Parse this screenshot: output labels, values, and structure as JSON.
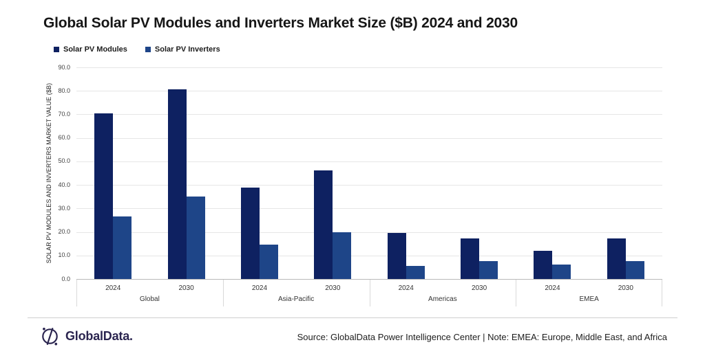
{
  "title": "Global Solar PV Modules and Inverters Market Size ($B) 2024 and 2030",
  "legend": {
    "items": [
      {
        "label": "Solar PV Modules",
        "color": "#0E2161",
        "marker": "square-icon"
      },
      {
        "label": "Solar PV Inverters",
        "color": "#1E4588",
        "marker": "square-icon"
      }
    ]
  },
  "chart_data": {
    "type": "bar",
    "title": "Global Solar PV Modules and Inverters Market Size ($B) 2024 and 2030",
    "ylabel": "SOLAR PV MODULES AND INVERTERS MARKET VALUE ($B)",
    "xlabel": "",
    "ylim": [
      0,
      90
    ],
    "ytick_step": 10,
    "ytick_format": "one-decimal",
    "grid": true,
    "legend_position": "top-left",
    "groups": [
      "Global",
      "Asia-Pacific",
      "Americas",
      "EMEA"
    ],
    "categories_per_group": [
      "2024",
      "2030"
    ],
    "series": [
      {
        "name": "Solar PV Modules",
        "color": "#0E2161",
        "values": [
          [
            70.5,
            80.7
          ],
          [
            38.8,
            46.2
          ],
          [
            19.5,
            17.2
          ],
          [
            12.1,
            17.2
          ]
        ]
      },
      {
        "name": "Solar PV Inverters",
        "color": "#1E4588",
        "values": [
          [
            26.6,
            35.0
          ],
          [
            14.5,
            19.8
          ],
          [
            5.6,
            7.6
          ],
          [
            6.0,
            7.5
          ]
        ]
      }
    ]
  },
  "footer": {
    "logo_text": "GlobalData.",
    "source_note": "Source: GlobalData Power Intelligence Center | Note: EMEA: Europe, Middle East, and Africa"
  }
}
